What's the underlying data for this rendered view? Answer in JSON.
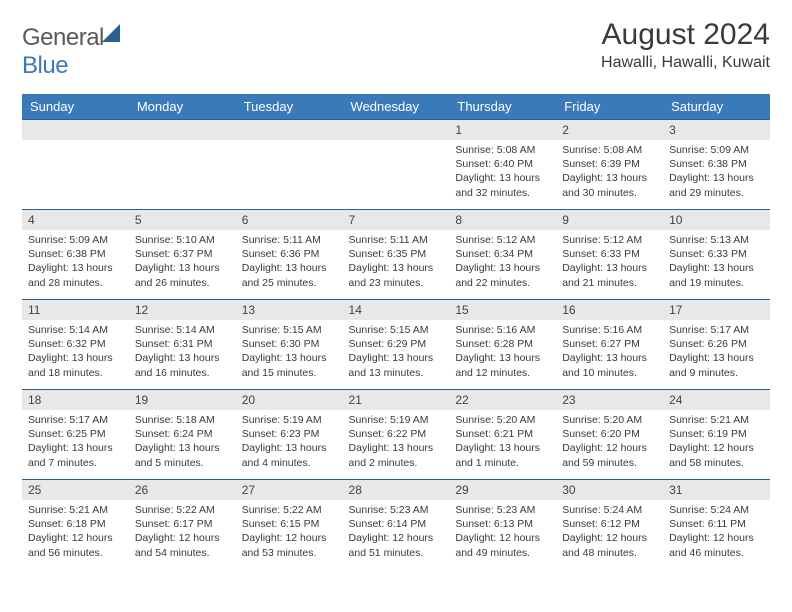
{
  "brand": {
    "word1": "General",
    "word2": "Blue"
  },
  "title": "August 2024",
  "location": "Hawalli, Hawalli, Kuwait",
  "colors": {
    "header_bg": "#3a7ab8",
    "header_text": "#ffffff",
    "cell_border": "#2b5f8f",
    "daynum_bg": "#e8e8e8",
    "body_text": "#3a3a3a",
    "logo_gray": "#5a5a5a",
    "logo_blue": "#3a7ab8"
  },
  "typography": {
    "title_fontsize": 30,
    "location_fontsize": 16,
    "header_fontsize": 13,
    "daynum_fontsize": 12,
    "body_fontsize": 10.5
  },
  "week_header": [
    "Sunday",
    "Monday",
    "Tuesday",
    "Wednesday",
    "Thursday",
    "Friday",
    "Saturday"
  ],
  "weeks": [
    [
      null,
      null,
      null,
      null,
      {
        "n": "1",
        "sunrise": "5:08 AM",
        "sunset": "6:40 PM",
        "daylight": "13 hours and 32 minutes."
      },
      {
        "n": "2",
        "sunrise": "5:08 AM",
        "sunset": "6:39 PM",
        "daylight": "13 hours and 30 minutes."
      },
      {
        "n": "3",
        "sunrise": "5:09 AM",
        "sunset": "6:38 PM",
        "daylight": "13 hours and 29 minutes."
      }
    ],
    [
      {
        "n": "4",
        "sunrise": "5:09 AM",
        "sunset": "6:38 PM",
        "daylight": "13 hours and 28 minutes."
      },
      {
        "n": "5",
        "sunrise": "5:10 AM",
        "sunset": "6:37 PM",
        "daylight": "13 hours and 26 minutes."
      },
      {
        "n": "6",
        "sunrise": "5:11 AM",
        "sunset": "6:36 PM",
        "daylight": "13 hours and 25 minutes."
      },
      {
        "n": "7",
        "sunrise": "5:11 AM",
        "sunset": "6:35 PM",
        "daylight": "13 hours and 23 minutes."
      },
      {
        "n": "8",
        "sunrise": "5:12 AM",
        "sunset": "6:34 PM",
        "daylight": "13 hours and 22 minutes."
      },
      {
        "n": "9",
        "sunrise": "5:12 AM",
        "sunset": "6:33 PM",
        "daylight": "13 hours and 21 minutes."
      },
      {
        "n": "10",
        "sunrise": "5:13 AM",
        "sunset": "6:33 PM",
        "daylight": "13 hours and 19 minutes."
      }
    ],
    [
      {
        "n": "11",
        "sunrise": "5:14 AM",
        "sunset": "6:32 PM",
        "daylight": "13 hours and 18 minutes."
      },
      {
        "n": "12",
        "sunrise": "5:14 AM",
        "sunset": "6:31 PM",
        "daylight": "13 hours and 16 minutes."
      },
      {
        "n": "13",
        "sunrise": "5:15 AM",
        "sunset": "6:30 PM",
        "daylight": "13 hours and 15 minutes."
      },
      {
        "n": "14",
        "sunrise": "5:15 AM",
        "sunset": "6:29 PM",
        "daylight": "13 hours and 13 minutes."
      },
      {
        "n": "15",
        "sunrise": "5:16 AM",
        "sunset": "6:28 PM",
        "daylight": "13 hours and 12 minutes."
      },
      {
        "n": "16",
        "sunrise": "5:16 AM",
        "sunset": "6:27 PM",
        "daylight": "13 hours and 10 minutes."
      },
      {
        "n": "17",
        "sunrise": "5:17 AM",
        "sunset": "6:26 PM",
        "daylight": "13 hours and 9 minutes."
      }
    ],
    [
      {
        "n": "18",
        "sunrise": "5:17 AM",
        "sunset": "6:25 PM",
        "daylight": "13 hours and 7 minutes."
      },
      {
        "n": "19",
        "sunrise": "5:18 AM",
        "sunset": "6:24 PM",
        "daylight": "13 hours and 5 minutes."
      },
      {
        "n": "20",
        "sunrise": "5:19 AM",
        "sunset": "6:23 PM",
        "daylight": "13 hours and 4 minutes."
      },
      {
        "n": "21",
        "sunrise": "5:19 AM",
        "sunset": "6:22 PM",
        "daylight": "13 hours and 2 minutes."
      },
      {
        "n": "22",
        "sunrise": "5:20 AM",
        "sunset": "6:21 PM",
        "daylight": "13 hours and 1 minute."
      },
      {
        "n": "23",
        "sunrise": "5:20 AM",
        "sunset": "6:20 PM",
        "daylight": "12 hours and 59 minutes."
      },
      {
        "n": "24",
        "sunrise": "5:21 AM",
        "sunset": "6:19 PM",
        "daylight": "12 hours and 58 minutes."
      }
    ],
    [
      {
        "n": "25",
        "sunrise": "5:21 AM",
        "sunset": "6:18 PM",
        "daylight": "12 hours and 56 minutes."
      },
      {
        "n": "26",
        "sunrise": "5:22 AM",
        "sunset": "6:17 PM",
        "daylight": "12 hours and 54 minutes."
      },
      {
        "n": "27",
        "sunrise": "5:22 AM",
        "sunset": "6:15 PM",
        "daylight": "12 hours and 53 minutes."
      },
      {
        "n": "28",
        "sunrise": "5:23 AM",
        "sunset": "6:14 PM",
        "daylight": "12 hours and 51 minutes."
      },
      {
        "n": "29",
        "sunrise": "5:23 AM",
        "sunset": "6:13 PM",
        "daylight": "12 hours and 49 minutes."
      },
      {
        "n": "30",
        "sunrise": "5:24 AM",
        "sunset": "6:12 PM",
        "daylight": "12 hours and 48 minutes."
      },
      {
        "n": "31",
        "sunrise": "5:24 AM",
        "sunset": "6:11 PM",
        "daylight": "12 hours and 46 minutes."
      }
    ]
  ],
  "labels": {
    "sunrise": "Sunrise: ",
    "sunset": "Sunset: ",
    "daylight": "Daylight: "
  }
}
